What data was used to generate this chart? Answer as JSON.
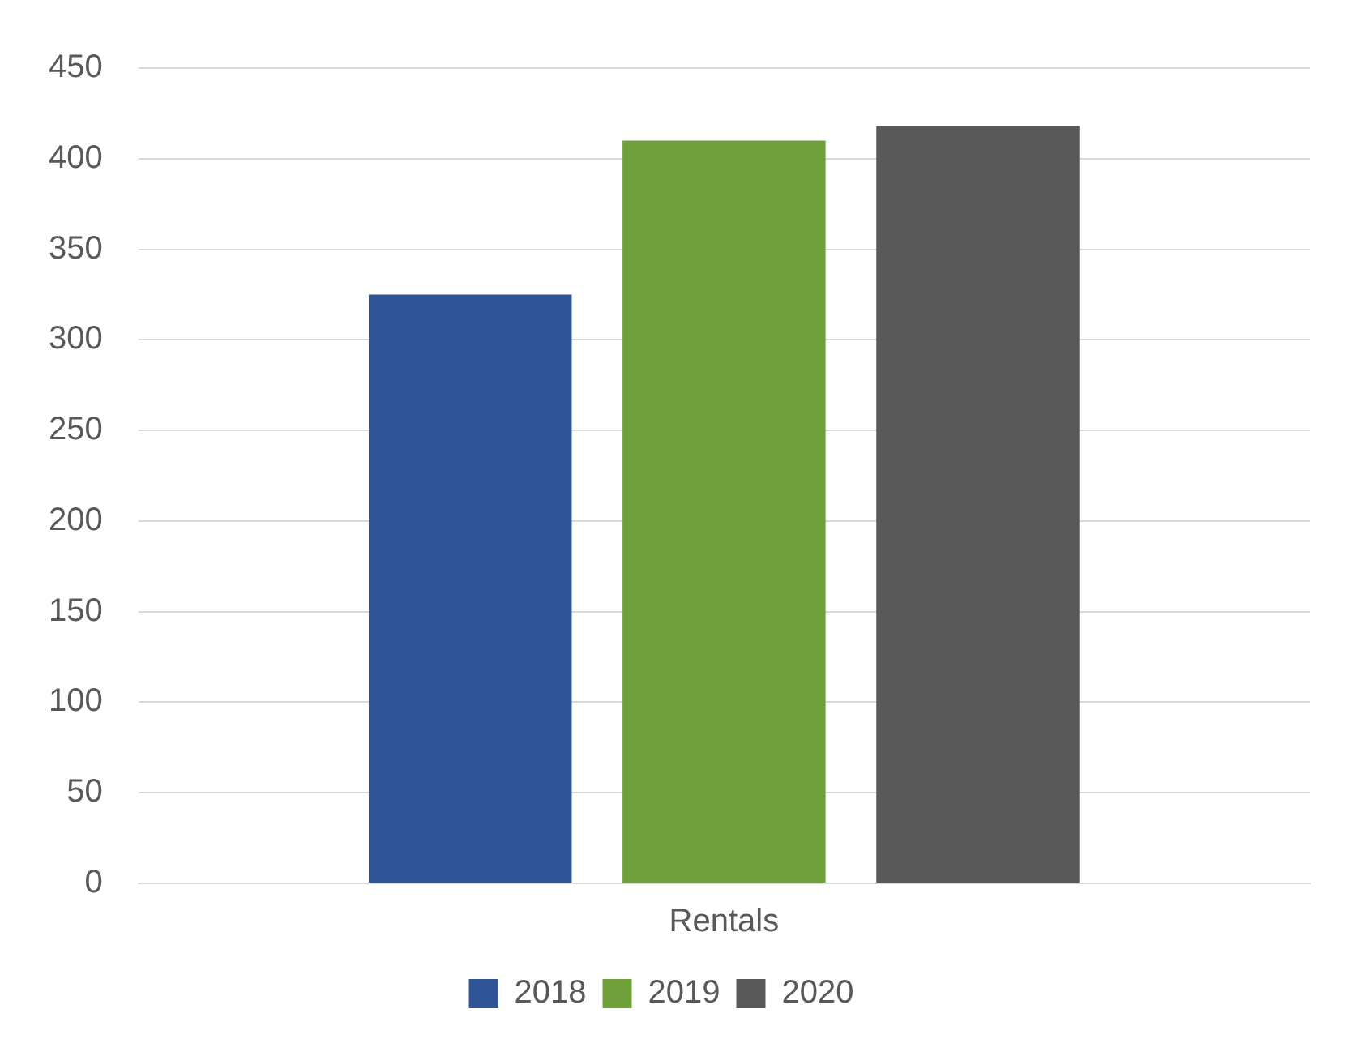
{
  "chart_data": {
    "type": "bar",
    "categories": [
      "Rentals"
    ],
    "series": [
      {
        "name": "2018",
        "color": "#2f5597",
        "values": [
          325
        ]
      },
      {
        "name": "2019",
        "color": "#70a03c",
        "values": [
          410
        ]
      },
      {
        "name": "2020",
        "color": "#595959",
        "values": [
          418
        ]
      }
    ],
    "ylim": [
      0,
      450
    ],
    "yticks": [
      0,
      50,
      100,
      150,
      200,
      250,
      300,
      350,
      400,
      450
    ],
    "grid": "y",
    "legend": "bottom"
  }
}
